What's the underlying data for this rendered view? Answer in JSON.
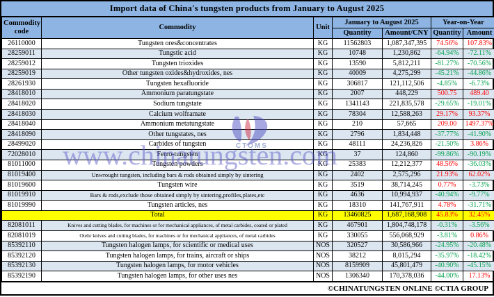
{
  "title": "Import data of China's tungsten products from January to August 2025",
  "header": {
    "commodity_code": "Commodity code",
    "commodity": "Commodity",
    "unit": "Unit",
    "period_group": "January to August 2025",
    "yoy_group": "Year-on-Year",
    "quantity": "Quantity",
    "amount_cny": "Amount/CNY",
    "yoy_quantity": "Quantity",
    "yoy_amount": "Amount"
  },
  "colors": {
    "title_header_bg": "#8DB4E2",
    "alt_row_bg": "#DCE6F1",
    "total_row_bg": "#FFFF00",
    "increase": "#FE0000",
    "decrease": "#00A14B",
    "watermark_blue": "#5C5CC8"
  },
  "chart_data": {
    "type": "table",
    "title": "Import data of China's tungsten products from January to August 2025",
    "columns": [
      "Commodity code",
      "Commodity",
      "Unit",
      "Quantity",
      "Amount/CNY",
      "Year-on-Year Quantity",
      "Year-on-Year Amount"
    ],
    "column_groups": [
      {
        "label": "January to August 2025",
        "children": [
          "Quantity",
          "Amount/CNY"
        ]
      },
      {
        "label": "Year-on-Year",
        "children": [
          "Quantity",
          "Amount"
        ]
      }
    ],
    "rows": [
      {
        "code": "26110000",
        "commodity": "Tungsten ores&concentrates",
        "unit": "KG",
        "quantity": "11562803",
        "amount_cny": "1,087,347,395",
        "yoy_quantity": "74.56%",
        "yoy_amount": "107.83%",
        "total": false
      },
      {
        "code": "28259011",
        "commodity": "Tungstic acid",
        "unit": "KG",
        "quantity": "10748",
        "amount_cny": "1,230,862",
        "yoy_quantity": "-64.94%",
        "yoy_amount": "-72.11%",
        "total": false
      },
      {
        "code": "28259012",
        "commodity": "Tungsten trioxides",
        "unit": "KG",
        "quantity": "13590",
        "amount_cny": "5,812,211",
        "yoy_quantity": "-81.27%",
        "yoy_amount": "-70.56%",
        "total": false
      },
      {
        "code": "28259019",
        "commodity": "Other tungsten oxides&hydroxides, nes",
        "unit": "KG",
        "quantity": "40009",
        "amount_cny": "4,275,299",
        "yoy_quantity": "-45.21%",
        "yoy_amount": "-44.86%",
        "total": false
      },
      {
        "code": "28261930",
        "commodity": "Tungsten hexafluoride",
        "unit": "KG",
        "quantity": "306817",
        "amount_cny": "121,112,506",
        "yoy_quantity": "-4.85%",
        "yoy_amount": "-6.73%",
        "total": false
      },
      {
        "code": "28418010",
        "commodity": "Ammonium paratungstate",
        "unit": "KG",
        "quantity": "2007",
        "amount_cny": "448,229",
        "yoy_quantity": "500.75",
        "yoy_amount": "489.40",
        "total": false
      },
      {
        "code": "28418020",
        "commodity": "Sodium tungstate",
        "unit": "KG",
        "quantity": "1341143",
        "amount_cny": "221,835,578",
        "yoy_quantity": "-29.65%",
        "yoy_amount": "-19.01%",
        "total": false
      },
      {
        "code": "28418030",
        "commodity": "Calcium wolframate",
        "unit": "KG",
        "quantity": "78304",
        "amount_cny": "12,588,263",
        "yoy_quantity": "29.17%",
        "yoy_amount": "93.37%",
        "total": false
      },
      {
        "code": "28418040",
        "commodity": "Ammonium metatungstate",
        "unit": "KG",
        "quantity": "210",
        "amount_cny": "57,665",
        "yoy_quantity": "209.00",
        "yoy_amount": "1497.37%",
        "total": false
      },
      {
        "code": "28418090",
        "commodity": "Other tungstates, nes",
        "unit": "KG",
        "quantity": "2796",
        "amount_cny": "1,834,448",
        "yoy_quantity": "-37.77%",
        "yoy_amount": "-41.90%",
        "total": false
      },
      {
        "code": "28499020",
        "commodity": "Carbides of tungsten",
        "unit": "KG",
        "quantity": "48111",
        "amount_cny": "24,236,826",
        "yoy_quantity": "-21.50%",
        "yoy_amount": "3.86%",
        "total": false
      },
      {
        "code": "72028010",
        "commodity": "Ferro-tungsten",
        "unit": "KG",
        "quantity": "37",
        "amount_cny": "124,860",
        "yoy_quantity": "-99.86%",
        "yoy_amount": "-90.19%",
        "total": false
      },
      {
        "code": "81011000",
        "commodity": "Tungsten powders",
        "unit": "KG",
        "quantity": "25383",
        "amount_cny": "12,212,377",
        "yoy_quantity": "48.56%",
        "yoy_amount": "-36.03%",
        "total": false
      },
      {
        "code": "81019400",
        "commodity": "Unwrought tungsten, including bars & rods obtained simply by sintering",
        "unit": "KG",
        "quantity": "2402",
        "amount_cny": "2,575,296",
        "yoy_quantity": "21.93%",
        "yoy_amount": "62.02%",
        "total": false
      },
      {
        "code": "81019600",
        "commodity": "Tungsten wire",
        "unit": "KG",
        "quantity": "3519",
        "amount_cny": "38,714,245",
        "yoy_quantity": "0.77%",
        "yoy_amount": "-3.73%",
        "total": false
      },
      {
        "code": "81019910",
        "commodity": "Bars & rods,exclude those obtained simply by sintering,profiles,plates,etc",
        "unit": "KG",
        "quantity": "4636",
        "amount_cny": "10,994,937",
        "yoy_quantity": "-40.94%",
        "yoy_amount": "-9.77%",
        "total": false
      },
      {
        "code": "81019990",
        "commodity": "Tungsten articles, nes",
        "unit": "KG",
        "quantity": "18310",
        "amount_cny": "141,767,911",
        "yoy_quantity": "4.78%",
        "yoy_amount": "-31.71%",
        "total": false
      },
      {
        "code": "",
        "commodity": "Total",
        "unit": "KG",
        "quantity": "13460825",
        "amount_cny": "1,687,168,908",
        "yoy_quantity": "45.83%",
        "yoy_amount": "32.45%",
        "total": true
      },
      {
        "code": "82081011",
        "commodity": "Knives and cutting blades, for machines or for mechanical appliances, of metal carbides, coated or plated",
        "unit": "KG",
        "quantity": "467901",
        "amount_cny": "1,804,748,178",
        "yoy_quantity": "-0.31%",
        "yoy_amount": "-3.56%",
        "total": false
      },
      {
        "code": "82081019",
        "commodity": "Otehr knives and cutting blades, for machines or for mechanical appliances, of metal carbides",
        "unit": "KG",
        "quantity": "330055",
        "amount_cny": "556,068,929",
        "yoy_quantity": "-3.81%",
        "yoy_amount": "0.86%",
        "total": false
      },
      {
        "code": "85392110",
        "commodity": "Tungsten halogen lamps, for scientific or medical uses",
        "unit": "NOS",
        "quantity": "320527",
        "amount_cny": "30,586,966",
        "yoy_quantity": "-24.95%",
        "yoy_amount": "-20.48%",
        "total": false
      },
      {
        "code": "85392120",
        "commodity": "Tungsten halogen lamps, for trains, aircraft or ships",
        "unit": "NOS",
        "quantity": "38212",
        "amount_cny": "8,015,294",
        "yoy_quantity": "-35.97%",
        "yoy_amount": "-18.42%",
        "total": false
      },
      {
        "code": "85392130",
        "commodity": "Tungsten halogen lamps, for motor vehicles",
        "unit": "NOS",
        "quantity": "8159909",
        "amount_cny": "45,801,479",
        "yoy_quantity": "-40.90%",
        "yoy_amount": "-45.15%",
        "total": false
      },
      {
        "code": "85392190",
        "commodity": "Tungsten halogen lamps, for other uses nes",
        "unit": "NOS",
        "quantity": "1306340",
        "amount_cny": "170,378,036",
        "yoy_quantity": "-44.00%",
        "yoy_amount": "17.13%",
        "total": false
      }
    ]
  },
  "watermark": {
    "text": "www.chinatungsten.com",
    "logo_label": "CTOMS"
  },
  "footer": "©CHINATUNGSTEN ONLINE ©CTIA GROUP"
}
